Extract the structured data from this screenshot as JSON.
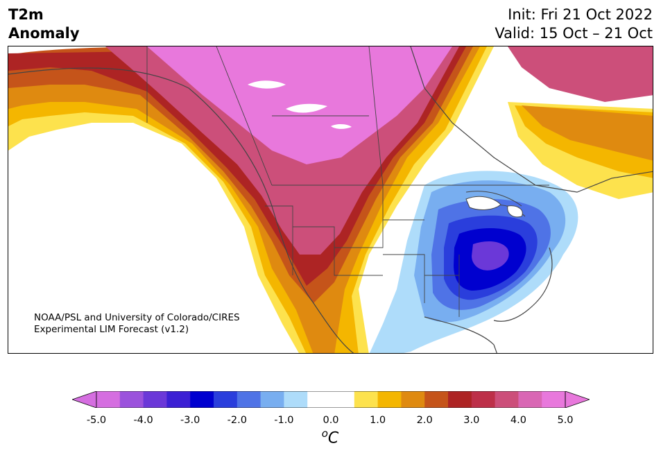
{
  "header": {
    "title_line1": "T2m",
    "title_line2": "Anomaly",
    "init_text": "Init: Fri 21 Oct 2022",
    "valid_text": "Valid: 15 Oct – 21 Oct"
  },
  "credit": {
    "line1": "NOAA/PSL and University of Colorado/CIRES",
    "line2": "Experimental LIM Forecast (v1.2)"
  },
  "colorbar": {
    "units_base": "C",
    "units_sup": "o",
    "ticks": [
      "-5.0",
      "-4.0",
      "-3.0",
      "-2.0",
      "-1.0",
      "0.0",
      "1.0",
      "2.0",
      "3.0",
      "4.0",
      "5.0"
    ],
    "colors": [
      "#d56ee0",
      "#9b52dc",
      "#6b38d8",
      "#3c20d4",
      "#0000cf",
      "#2a3edc",
      "#4f73e6",
      "#78aef0",
      "#aedcfa",
      "#ffffff",
      "#ffffff",
      "#fde24d",
      "#f4b600",
      "#df8a10",
      "#c5541a",
      "#ad2424",
      "#bd3049",
      "#cc4f7a",
      "#d967b4",
      "#e878dc"
    ],
    "under_color": "#d56ee0",
    "over_color": "#e878dc"
  }
}
